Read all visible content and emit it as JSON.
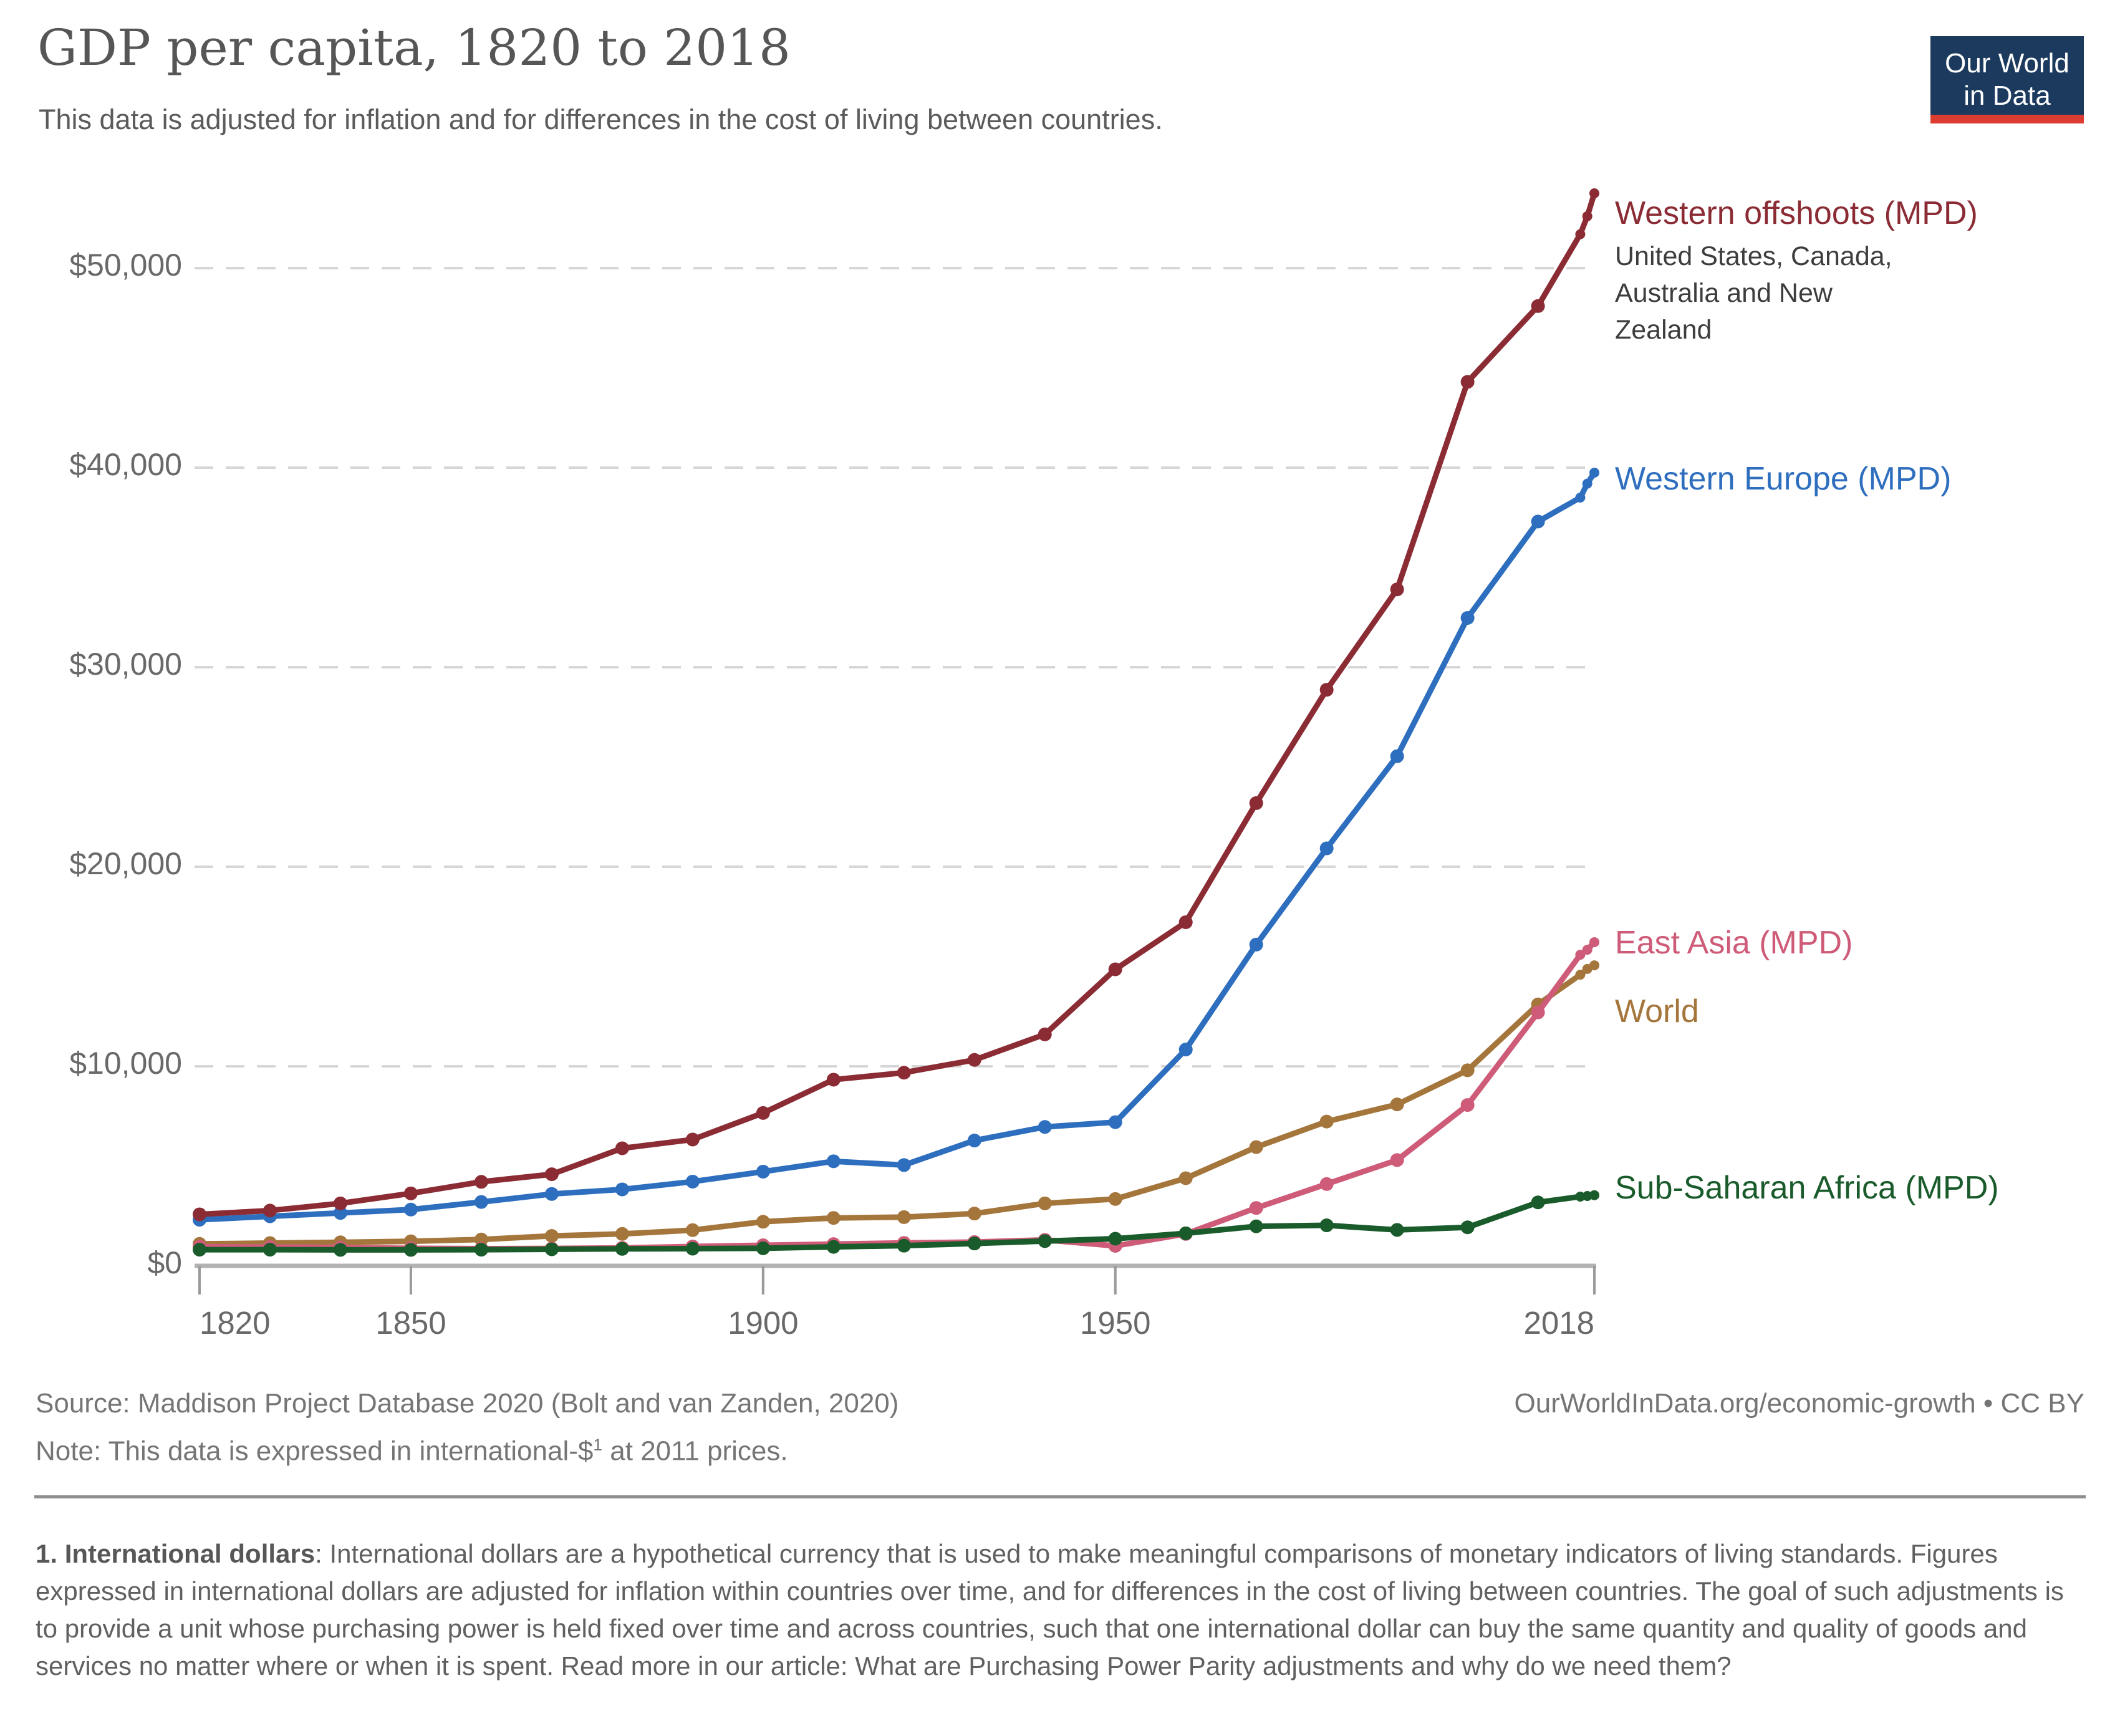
{
  "header": {
    "title": "GDP per capita, 1820 to 2018",
    "subtitle": "This data is adjusted for inflation and for differences in the cost of living between countries."
  },
  "logo": {
    "line1": "Our World",
    "line2": "in Data",
    "bg_color": "#1c3a5e",
    "strip_color": "#dc3c32"
  },
  "footer": {
    "source_line": "Source: Maddison Project Database 2020 (Bolt and van Zanden, 2020)",
    "note_before_sup": "Note: This data is expressed in international-$",
    "note_sup": "1",
    "note_after_sup": " at 2011 prices.",
    "attribution": "OurWorldInData.org/economic-growth • CC BY",
    "footnote_lead": "1. International dollars",
    "footnote_rest": ": International dollars are a hypothetical currency that is used to make meaningful comparisons of monetary indicators of living standards. Figures expressed in international dollars are adjusted for inflation within countries over time, and for differences in the cost of living between countries. The goal of such adjustments is to provide a unit whose purchasing power is held fixed over time and across countries, such that one international dollar can buy the same quantity and quality of goods and services no matter where or when it is spent. Read more in our article: What are Purchasing Power Parity adjustments and why do we need them?"
  },
  "chart_data": {
    "type": "line",
    "title": "GDP per capita, 1820 to 2018",
    "xlabel": "",
    "ylabel": "",
    "x_range": [
      1820,
      2018
    ],
    "ylim": [
      0,
      55000
    ],
    "grid": "dashed-horizontal",
    "legend_position": "right-of-line-endpoints",
    "x": [
      1820,
      1830,
      1840,
      1850,
      1860,
      1870,
      1880,
      1890,
      1900,
      1910,
      1920,
      1930,
      1940,
      1950,
      1960,
      1970,
      1980,
      1990,
      2000,
      2010,
      2016,
      2017,
      2018
    ],
    "y_ticks": [
      {
        "value": 0,
        "label": "$0"
      },
      {
        "value": 10000,
        "label": "$10,000"
      },
      {
        "value": 20000,
        "label": "$20,000"
      },
      {
        "value": 30000,
        "label": "$30,000"
      },
      {
        "value": 40000,
        "label": "$40,000"
      },
      {
        "value": 50000,
        "label": "$50,000"
      }
    ],
    "x_ticks": [
      {
        "value": 1820,
        "label": "1820"
      },
      {
        "value": 1850,
        "label": "1850"
      },
      {
        "value": 1900,
        "label": "1900"
      },
      {
        "value": 1950,
        "label": "1950"
      },
      {
        "value": 2018,
        "label": "2018"
      }
    ],
    "series": [
      {
        "label": "Western offshoots (MPD)",
        "sublabel": [
          "United States, Canada,",
          "Australia and New",
          "Zealand"
        ],
        "color": "#8b2c35",
        "values": [
          2580,
          2770,
          3130,
          3630,
          4210,
          4590,
          5890,
          6330,
          7660,
          9330,
          9680,
          10320,
          11600,
          14860,
          17220,
          23190,
          28870,
          33900,
          44300,
          48100,
          51700,
          52600,
          53750
        ]
      },
      {
        "label": "Western Europe (MPD)",
        "sublabel": [],
        "color": "#2e6ebe",
        "values": [
          2310,
          2480,
          2650,
          2820,
          3200,
          3600,
          3830,
          4220,
          4720,
          5240,
          5050,
          6280,
          6960,
          7200,
          10840,
          16100,
          20920,
          25540,
          32470,
          37300,
          38500,
          39200,
          39750
        ]
      },
      {
        "label": "East Asia (MPD)",
        "sublabel": [],
        "color": "#ce5b78",
        "values": [
          960,
          940,
          920,
          880,
          860,
          870,
          900,
          970,
          1030,
          1090,
          1150,
          1190,
          1300,
          1000,
          1600,
          2900,
          4100,
          5300,
          8060,
          12700,
          15590,
          15840,
          16220
        ]
      },
      {
        "label": "World",
        "sublabel": [],
        "color": "#a5763c",
        "values": [
          1100,
          1140,
          1180,
          1230,
          1320,
          1500,
          1600,
          1790,
          2210,
          2400,
          2440,
          2620,
          3130,
          3350,
          4390,
          5950,
          7230,
          8090,
          9800,
          13100,
          14590,
          14880,
          15060
        ]
      },
      {
        "label": "Sub-Saharan Africa (MPD)",
        "sublabel": [],
        "color": "#1a5b2b",
        "values": [
          810,
          810,
          800,
          800,
          810,
          830,
          850,
          860,
          880,
          950,
          1010,
          1120,
          1240,
          1360,
          1630,
          1980,
          2030,
          1800,
          1930,
          3180,
          3470,
          3500,
          3540
        ]
      }
    ]
  }
}
